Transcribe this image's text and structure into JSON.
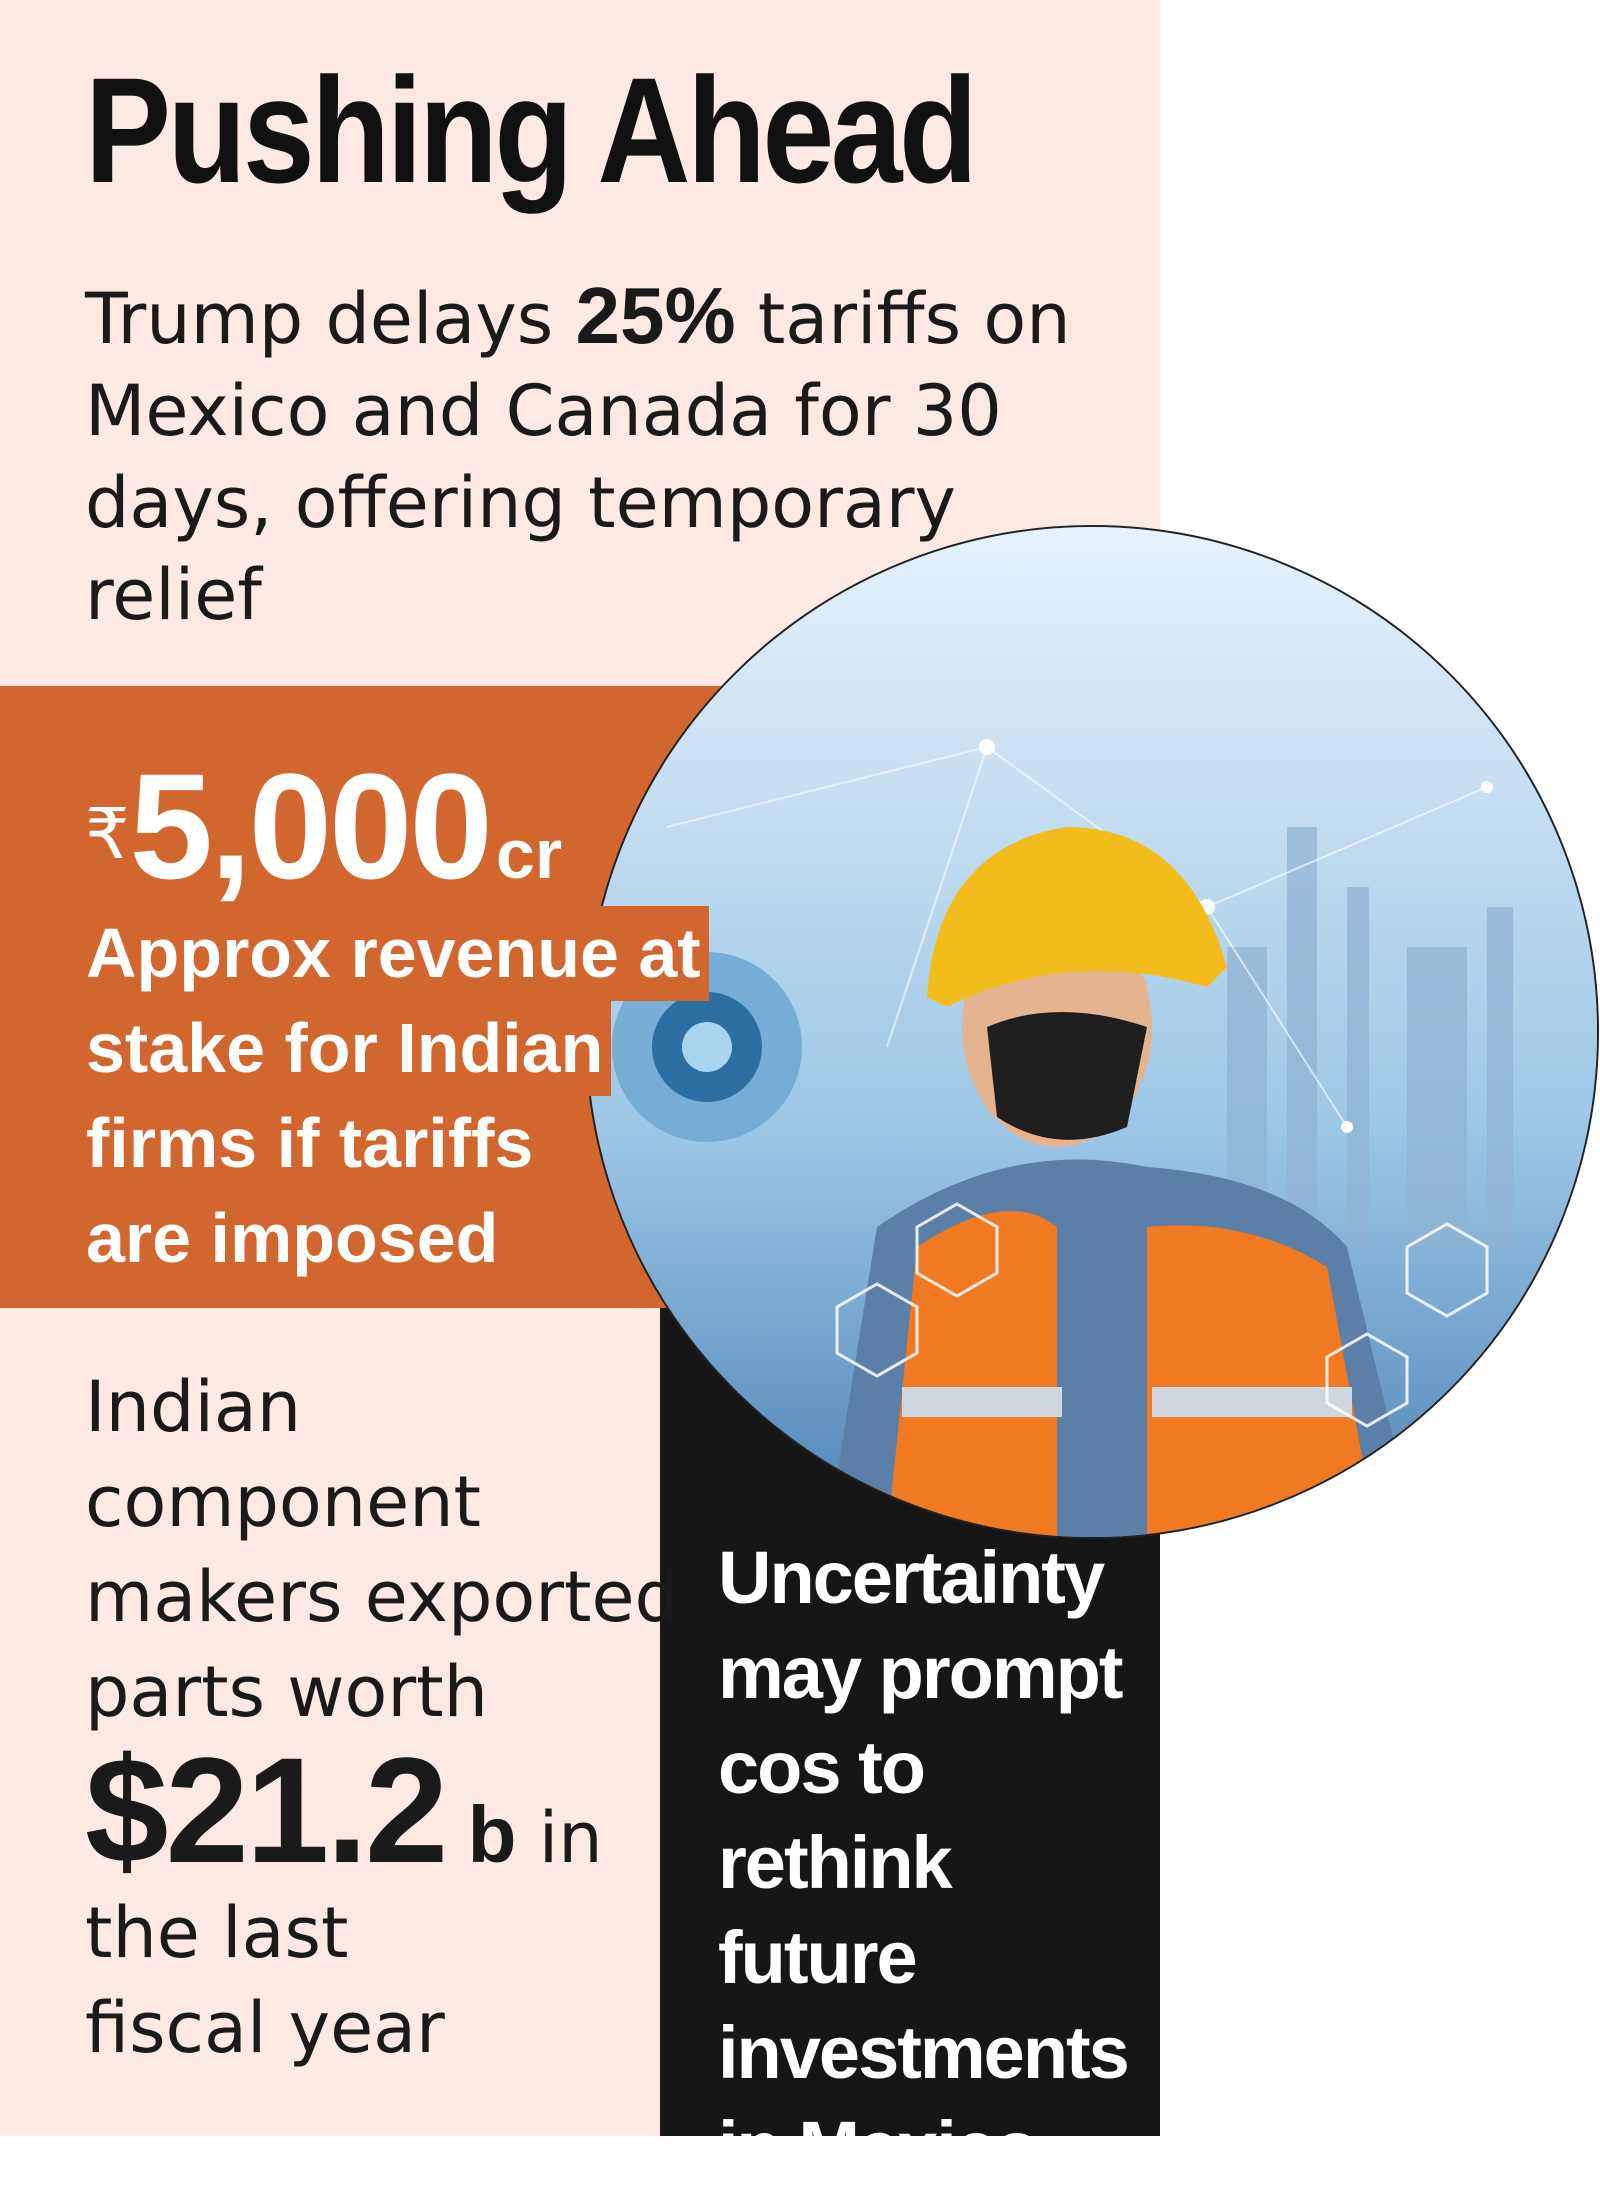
{
  "headline": {
    "title": "Pushing Ahead",
    "lead_before": "Trump delays ",
    "lead_highlight": "25%",
    "lead_after": " tariffs on Mexico and Canada for 30 days, offering temporary relief"
  },
  "revenue_at_stake": {
    "currency_symbol": "₹",
    "value": "5,000",
    "unit": "cr",
    "caption_lines": [
      "Approx revenue at",
      "stake for Indian",
      "firms if tariffs",
      "are imposed"
    ]
  },
  "exports": {
    "lines_before": [
      "Indian",
      "component",
      "makers exported",
      "parts worth"
    ],
    "amount": "$21.2",
    "amount_unit": "b",
    "amount_after": " in",
    "lines_after": [
      "the last",
      "fiscal year"
    ]
  },
  "outlook": {
    "lines": [
      "Uncertainty",
      "may prompt",
      "cos to rethink",
      "future",
      "investments",
      "in Mexico"
    ]
  },
  "colors": {
    "background_pink": "#fde9e4",
    "accent_orange": "#d2662f",
    "panel_black": "#161616"
  },
  "image": {
    "icon": "industrial-worker-illustration"
  }
}
